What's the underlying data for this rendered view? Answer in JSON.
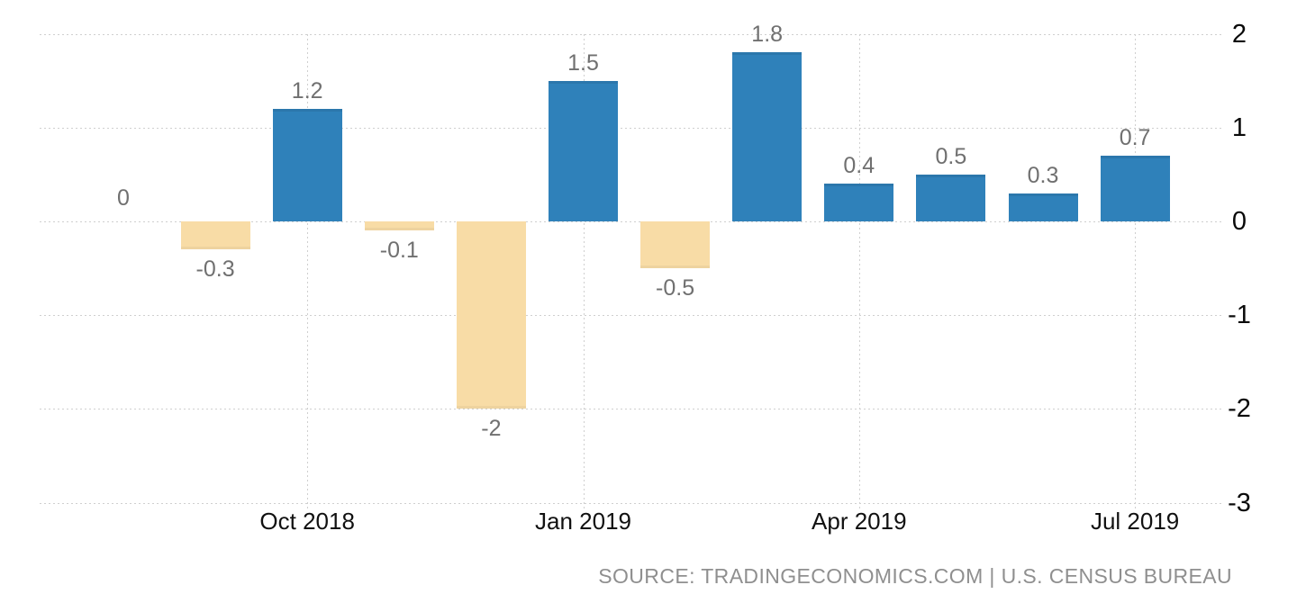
{
  "source_text": "SOURCE: TRADINGECONOMICS.COM | U.S. CENSUS BUREAU",
  "colors": {
    "positive_bar": "#2f81ba",
    "negative_bar": "#f8dca6",
    "grid": "#cfcfcf",
    "value_label": "#707070",
    "axis_label": "#111111",
    "source_text": "#8f8f8f",
    "background": "#ffffff"
  },
  "chart_data": {
    "type": "bar",
    "title": "",
    "xlabel": "",
    "ylabel": "",
    "legend": "none",
    "grid": "dotted horizontal lines at every y tick; dotted vertical lines at every x tick",
    "values": [
      0,
      -0.3,
      1.2,
      -0.1,
      -2,
      1.5,
      -0.5,
      1.8,
      0.4,
      0.5,
      0.3,
      0.7
    ],
    "bar_labels": [
      "0",
      "-0.3",
      "1.2",
      "-0.1",
      "-2",
      "1.5",
      "-0.5",
      "1.8",
      "0.4",
      "0.5",
      "0.3",
      "0.7"
    ],
    "x_tick_labels": [
      "Oct 2018",
      "Jan 2019",
      "Apr 2019",
      "Jul 2019"
    ],
    "x_tick_bar_indices": [
      2,
      5,
      8,
      11
    ],
    "y_ticks": [
      2,
      1,
      0,
      -1,
      -2,
      -3
    ],
    "y_tick_labels": [
      "2",
      "1",
      "0",
      "-1",
      "-2",
      "-3"
    ],
    "ylim": [
      -3,
      2
    ]
  }
}
